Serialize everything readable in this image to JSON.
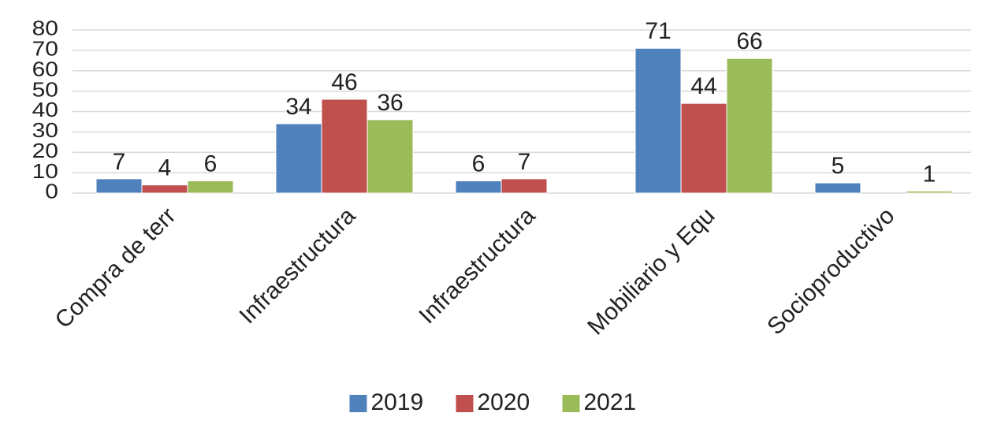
{
  "chart_data": {
    "type": "bar",
    "categories": [
      "Compra de terr",
      "Infraestructura",
      "Infraestructura",
      "Mobiliario y Equ",
      "Socioproductivo"
    ],
    "series": [
      {
        "name": "2019",
        "color": "#4f81bd",
        "values": [
          7,
          34,
          6,
          71,
          5
        ]
      },
      {
        "name": "2020",
        "color": "#c0504d",
        "values": [
          4,
          46,
          7,
          44,
          null
        ]
      },
      {
        "name": "2021",
        "color": "#9bbb59",
        "values": [
          6,
          36,
          null,
          66,
          1
        ]
      }
    ],
    "ylim": [
      0,
      80
    ],
    "yticks": [
      0,
      10,
      20,
      30,
      40,
      50,
      60,
      70,
      80
    ],
    "grid": true,
    "legend": "bottom"
  }
}
